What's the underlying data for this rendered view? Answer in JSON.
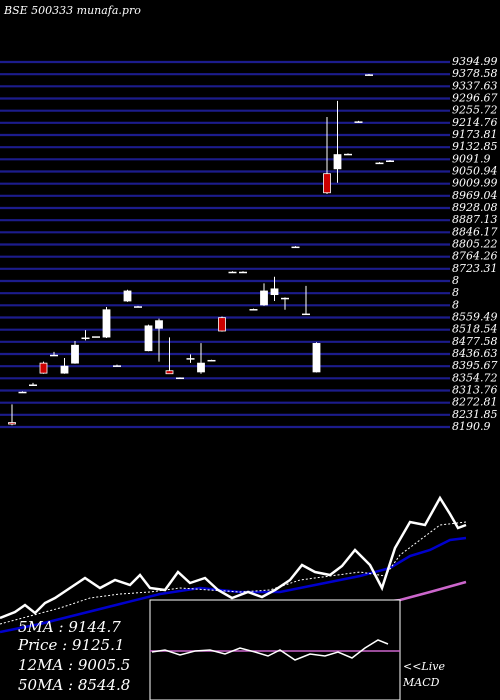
{
  "title": "BSE 500333 munafa.pro",
  "price_axis": [
    "9394.99",
    "9378.58",
    "9337.63",
    "9296.67",
    "9255.72",
    "9214.76",
    "9173.81",
    "9132.85",
    "9091.9",
    "9050.94",
    "9009.99",
    "8969.04",
    "8928.08",
    "8887.13",
    "8846.17",
    "8805.22",
    "8764.26",
    "8723.31",
    "8",
    "8",
    "8",
    "8559.49",
    "8518.54",
    "8477.58",
    "8436.63",
    "8395.67",
    "8354.72",
    "8313.76",
    "8272.81",
    "8231.85",
    "8190.9"
  ],
  "legend": {
    "ma5": "5MA : 9144.7",
    "price": "Price  : 9125.1",
    "ma12": "12MA : 9005.5",
    "ma50": "50MA : 8544.8"
  },
  "macd_label_1": "<<Live",
  "macd_label_2": "MACD",
  "colors": {
    "background": "#000000",
    "grid": "#1c1c8c",
    "bullish": "#ffffff",
    "bearish": "#cc0000",
    "ma_short": "#ffffff",
    "ma_mid": "#0000cc",
    "ma_long": "#cc66cc"
  },
  "chart_data": {
    "type": "candlestick",
    "ylim": [
      8190.9,
      9394.99
    ],
    "candles": [
      {
        "o": 8199,
        "h": 8259,
        "c": 8199,
        "l": 8190,
        "dir": "down"
      },
      {
        "o": 8298,
        "h": 8302,
        "c": 8298,
        "l": 8298,
        "dir": "flat"
      },
      {
        "o": 8322,
        "h": 8330,
        "c": 8322,
        "l": 8322,
        "dir": "flat"
      },
      {
        "o": 8395,
        "h": 8400,
        "c": 8362,
        "l": 8360,
        "dir": "down"
      },
      {
        "o": 8420,
        "h": 8432,
        "c": 8420,
        "l": 8420,
        "dir": "flat"
      },
      {
        "o": 8385,
        "h": 8412,
        "c": 8362,
        "l": 8360,
        "dir": "up"
      },
      {
        "o": 8454,
        "h": 8468,
        "c": 8395,
        "l": 8393,
        "dir": "up"
      },
      {
        "o": 8477,
        "h": 8504,
        "c": 8477,
        "l": 8470,
        "dir": "flat"
      },
      {
        "o": 8481,
        "h": 8483,
        "c": 8481,
        "l": 8481,
        "dir": "flat"
      },
      {
        "o": 8571,
        "h": 8580,
        "c": 8481,
        "l": 8478,
        "dir": "up"
      },
      {
        "o": 8385,
        "h": 8390,
        "c": 8385,
        "l": 8385,
        "dir": "flat"
      },
      {
        "o": 8633,
        "h": 8637,
        "c": 8600,
        "l": 8597,
        "dir": "up"
      },
      {
        "o": 8580,
        "h": 8584,
        "c": 8580,
        "l": 8580,
        "dir": "flat"
      },
      {
        "o": 8518,
        "h": 8522,
        "c": 8436,
        "l": 8434,
        "dir": "up"
      },
      {
        "o": 8535,
        "h": 8542,
        "c": 8510,
        "l": 8400,
        "dir": "up"
      },
      {
        "o": 8370,
        "h": 8480,
        "c": 8360,
        "l": 8360,
        "dir": "down"
      },
      {
        "o": 8345,
        "h": 8348,
        "c": 8345,
        "l": 8345,
        "dir": "flat"
      },
      {
        "o": 8409,
        "h": 8424,
        "c": 8402,
        "l": 8396,
        "dir": "flat"
      },
      {
        "o": 8395,
        "h": 8461,
        "c": 8366,
        "l": 8360,
        "dir": "up"
      },
      {
        "o": 8403,
        "h": 8406,
        "c": 8403,
        "l": 8403,
        "dir": "flat"
      },
      {
        "o": 8545,
        "h": 8549,
        "c": 8501,
        "l": 8499,
        "dir": "down"
      },
      {
        "o": 8694,
        "h": 8698,
        "c": 8694,
        "l": 8694,
        "dir": "flat"
      },
      {
        "o": 8694,
        "h": 8698,
        "c": 8694,
        "l": 8694,
        "dir": "flat"
      },
      {
        "o": 8571,
        "h": 8575,
        "c": 8571,
        "l": 8571,
        "dir": "flat"
      },
      {
        "o": 8633,
        "h": 8658,
        "c": 8587,
        "l": 8584,
        "dir": "up"
      },
      {
        "o": 8640,
        "h": 8680,
        "c": 8621,
        "l": 8600,
        "dir": "up"
      },
      {
        "o": 8608,
        "h": 8612,
        "c": 8608,
        "l": 8571,
        "dir": "flat"
      },
      {
        "o": 8777,
        "h": 8781,
        "c": 8777,
        "l": 8777,
        "dir": "flat"
      },
      {
        "o": 8556,
        "h": 8650,
        "c": 8556,
        "l": 8556,
        "dir": "flat"
      },
      {
        "o": 8460,
        "h": 8464,
        "c": 8366,
        "l": 8364,
        "dir": "up"
      },
      {
        "o": 8957,
        "h": 9207,
        "c": 9020,
        "l": 8953,
        "dir": "down"
      },
      {
        "o": 9083,
        "h": 9260,
        "c": 9036,
        "l": 8990,
        "dir": "up"
      },
      {
        "o": 9083,
        "h": 9087,
        "c": 9083,
        "l": 9083,
        "dir": "flat"
      },
      {
        "o": 9190,
        "h": 9194,
        "c": 9190,
        "l": 9190,
        "dir": "flat"
      },
      {
        "o": 9345,
        "h": 9349,
        "c": 9345,
        "l": 9345,
        "dir": "flat"
      },
      {
        "o": 9054,
        "h": 9058,
        "c": 9054,
        "l": 9054,
        "dir": "flat"
      },
      {
        "o": 9061,
        "h": 9065,
        "c": 9061,
        "l": 9061,
        "dir": "flat"
      }
    ]
  }
}
